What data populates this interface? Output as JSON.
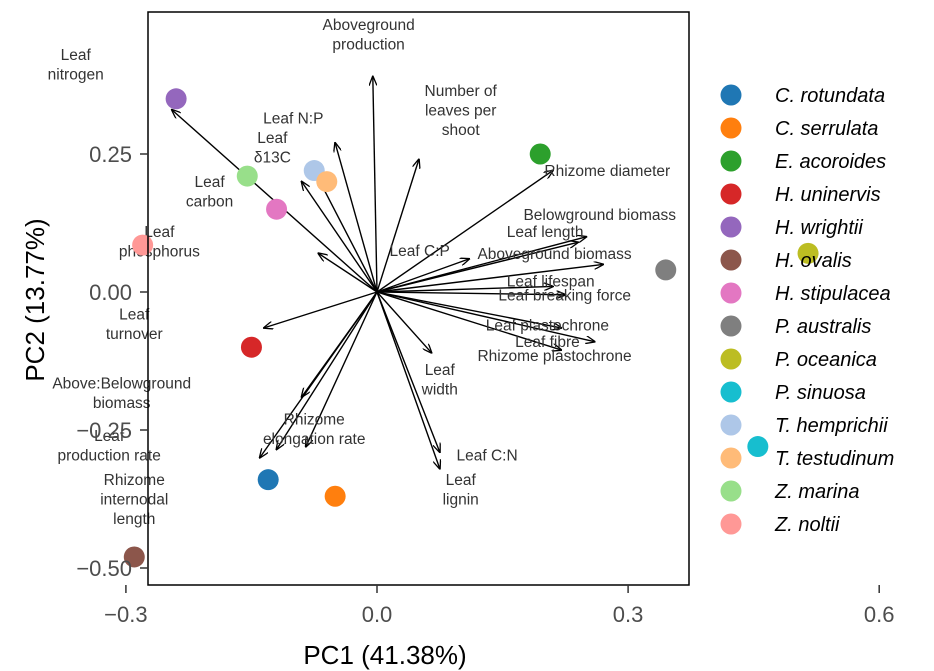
{
  "chart_data": {
    "type": "scatter",
    "subtype": "pca-biplot",
    "title": "",
    "xlabel": "PC1 (41.38%)",
    "ylabel": "PC2 (13.77%)",
    "xlim": [
      -0.555,
      0.37
    ],
    "ylim": [
      -0.53,
      0.51
    ],
    "xticks": [
      {
        "value": -0.3,
        "label": "−0.3"
      },
      {
        "value": 0.0,
        "label": "0.0"
      },
      {
        "value": 0.3,
        "label": "0.3"
      },
      {
        "value": 0.6,
        "label": "0.6"
      }
    ],
    "yticks": [
      {
        "value": 0.25,
        "label": "0.25"
      },
      {
        "value": 0.0,
        "label": "0.00"
      },
      {
        "value": -0.25,
        "label": "−0.25"
      },
      {
        "value": -0.5,
        "label": "−0.50"
      }
    ],
    "grid": false,
    "legend_position": "right",
    "points": [
      {
        "name": "C. rotundata",
        "color": "#1f77b4",
        "x": -0.13,
        "y": -0.34
      },
      {
        "name": "C. serrulata",
        "color": "#ff7f0e",
        "x": -0.05,
        "y": -0.37
      },
      {
        "name": "E. acoroides",
        "color": "#2ca02c",
        "x": 0.195,
        "y": 0.25
      },
      {
        "name": "H. uninervis",
        "color": "#d62728",
        "x": -0.15,
        "y": -0.1
      },
      {
        "name": "H. wrightii",
        "color": "#9467bd",
        "x": -0.24,
        "y": 0.35
      },
      {
        "name": "H. ovalis",
        "color": "#8c564b",
        "x": -0.29,
        "y": -0.48
      },
      {
        "name": "H. stipulacea",
        "color": "#e377c2",
        "x": -0.12,
        "y": 0.15
      },
      {
        "name": "P. australis",
        "color": "#7f7f7f",
        "x": 0.345,
        "y": 0.04
      },
      {
        "name": "P. oceanica",
        "color": "#bcbd22",
        "x": 0.515,
        "y": 0.07
      },
      {
        "name": "P. sinuosa",
        "color": "#17becf",
        "x": 0.455,
        "y": -0.28
      },
      {
        "name": "T. hemprichii",
        "color": "#aec7e8",
        "x": -0.075,
        "y": 0.22
      },
      {
        "name": "T. testudinum",
        "color": "#ffbb78",
        "x": -0.06,
        "y": 0.2
      },
      {
        "name": "Z. marina",
        "color": "#98df8a",
        "x": -0.155,
        "y": 0.21
      },
      {
        "name": "Z. noltii",
        "color": "#ff9896",
        "x": -0.28,
        "y": 0.085
      }
    ],
    "loadings": [
      {
        "label": [
          "Aboveground",
          "production"
        ],
        "x": -0.005,
        "y": 0.39,
        "lx": -0.01,
        "ly": 0.475,
        "anchor": "middle"
      },
      {
        "label": [
          "Leaf",
          "nitrogen"
        ],
        "x": -0.245,
        "y": 0.33,
        "lx": -0.36,
        "ly": 0.42,
        "anchor": "middle"
      },
      {
        "label": [
          "Leaf N:P"
        ],
        "x": -0.05,
        "y": 0.27,
        "lx": -0.1,
        "ly": 0.305,
        "anchor": "middle"
      },
      {
        "label": [
          "Leaf",
          "δ13C"
        ],
        "x": -0.075,
        "y": 0.22,
        "lx": -0.125,
        "ly": 0.27,
        "anchor": "middle"
      },
      {
        "label": [
          "Number of",
          "leaves per",
          "shoot"
        ],
        "x": 0.05,
        "y": 0.24,
        "lx": 0.1,
        "ly": 0.355,
        "anchor": "middle"
      },
      {
        "label": [
          "Leaf",
          "carbon"
        ],
        "x": -0.09,
        "y": 0.2,
        "lx": -0.2,
        "ly": 0.19,
        "anchor": "middle"
      },
      {
        "label": [
          "Rhizome diameter"
        ],
        "x": 0.21,
        "y": 0.22,
        "lx": 0.2,
        "ly": 0.21,
        "anchor": "start"
      },
      {
        "label": [
          "Belowground biomass"
        ],
        "x": 0.25,
        "y": 0.1,
        "lx": 0.175,
        "ly": 0.13,
        "anchor": "start"
      },
      {
        "label": [
          "Leaf length"
        ],
        "x": 0.24,
        "y": 0.09,
        "lx": 0.155,
        "ly": 0.1,
        "anchor": "start"
      },
      {
        "label": [
          "Leaf C:P"
        ],
        "x": 0.11,
        "y": 0.06,
        "lx": 0.015,
        "ly": 0.065,
        "anchor": "start"
      },
      {
        "label": [
          "Aboveground biomass"
        ],
        "x": 0.27,
        "y": 0.05,
        "lx": 0.12,
        "ly": 0.06,
        "anchor": "start"
      },
      {
        "label": [
          "Leaf",
          "phosphorus"
        ],
        "x": -0.07,
        "y": 0.07,
        "lx": -0.26,
        "ly": 0.1,
        "anchor": "middle"
      },
      {
        "label": [
          "Leaf lifespan"
        ],
        "x": 0.21,
        "y": 0.01,
        "lx": 0.155,
        "ly": 0.01,
        "anchor": "start"
      },
      {
        "label": [
          "Leaf breaking force"
        ],
        "x": 0.225,
        "y": -0.005,
        "lx": 0.145,
        "ly": -0.015,
        "anchor": "start"
      },
      {
        "label": [
          "Leaf plastochrone"
        ],
        "x": 0.22,
        "y": -0.065,
        "lx": 0.13,
        "ly": -0.07,
        "anchor": "start"
      },
      {
        "label": [
          "Leaf fibre"
        ],
        "x": 0.26,
        "y": -0.09,
        "lx": 0.165,
        "ly": -0.1,
        "anchor": "start"
      },
      {
        "label": [
          "Rhizome plastochrone"
        ],
        "x": 0.22,
        "y": -0.105,
        "lx": 0.12,
        "ly": -0.125,
        "anchor": "start"
      },
      {
        "label": [
          "Leaf",
          "width"
        ],
        "x": 0.065,
        "y": -0.11,
        "lx": 0.075,
        "ly": -0.15,
        "anchor": "middle"
      },
      {
        "label": [
          "Leaf",
          "turnover"
        ],
        "x": -0.135,
        "y": -0.065,
        "lx": -0.29,
        "ly": -0.05,
        "anchor": "middle"
      },
      {
        "label": [
          "Above:Belowground",
          "biomass"
        ],
        "x": -0.09,
        "y": -0.19,
        "lx": -0.305,
        "ly": -0.175,
        "anchor": "middle"
      },
      {
        "label": [
          "Rhizome",
          "elongation rate"
        ],
        "x": -0.085,
        "y": -0.28,
        "lx": -0.075,
        "ly": -0.24,
        "anchor": "middle"
      },
      {
        "label": [
          "Leaf",
          "production rate"
        ],
        "x": -0.12,
        "y": -0.285,
        "lx": -0.32,
        "ly": -0.27,
        "anchor": "middle"
      },
      {
        "label": [
          "Rhizome",
          "internodal",
          "length"
        ],
        "x": -0.14,
        "y": -0.3,
        "lx": -0.29,
        "ly": -0.35,
        "anchor": "middle"
      },
      {
        "label": [
          "Leaf C:N"
        ],
        "x": 0.075,
        "y": -0.29,
        "lx": 0.095,
        "ly": -0.305,
        "anchor": "start"
      },
      {
        "label": [
          "Leaf",
          "lignin"
        ],
        "x": 0.075,
        "y": -0.32,
        "lx": 0.1,
        "ly": -0.35,
        "anchor": "middle"
      }
    ]
  }
}
